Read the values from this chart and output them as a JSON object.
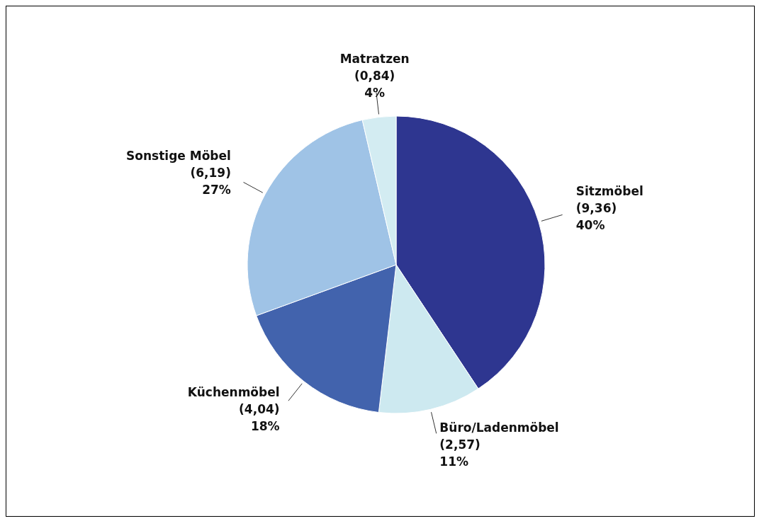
{
  "chart_data": {
    "type": "pie",
    "categories": [
      "Sitzmöbel",
      "Büro/Ladenmöbel",
      "Küchenmöbel",
      "Sonstige Möbel",
      "Matratzen"
    ],
    "values": [
      9.36,
      2.57,
      4.04,
      6.19,
      0.84
    ],
    "colors": [
      "#2e3690",
      "#cde9f0",
      "#4263ad",
      "#9fc3e6",
      "#d3ecf2"
    ],
    "value_labels": [
      "(9,36)\n40%",
      "(2,57)\n11%",
      "(4,04)\n18%",
      "(6,19)\n27%",
      "(0,84)\n4%"
    ],
    "legend": false
  }
}
